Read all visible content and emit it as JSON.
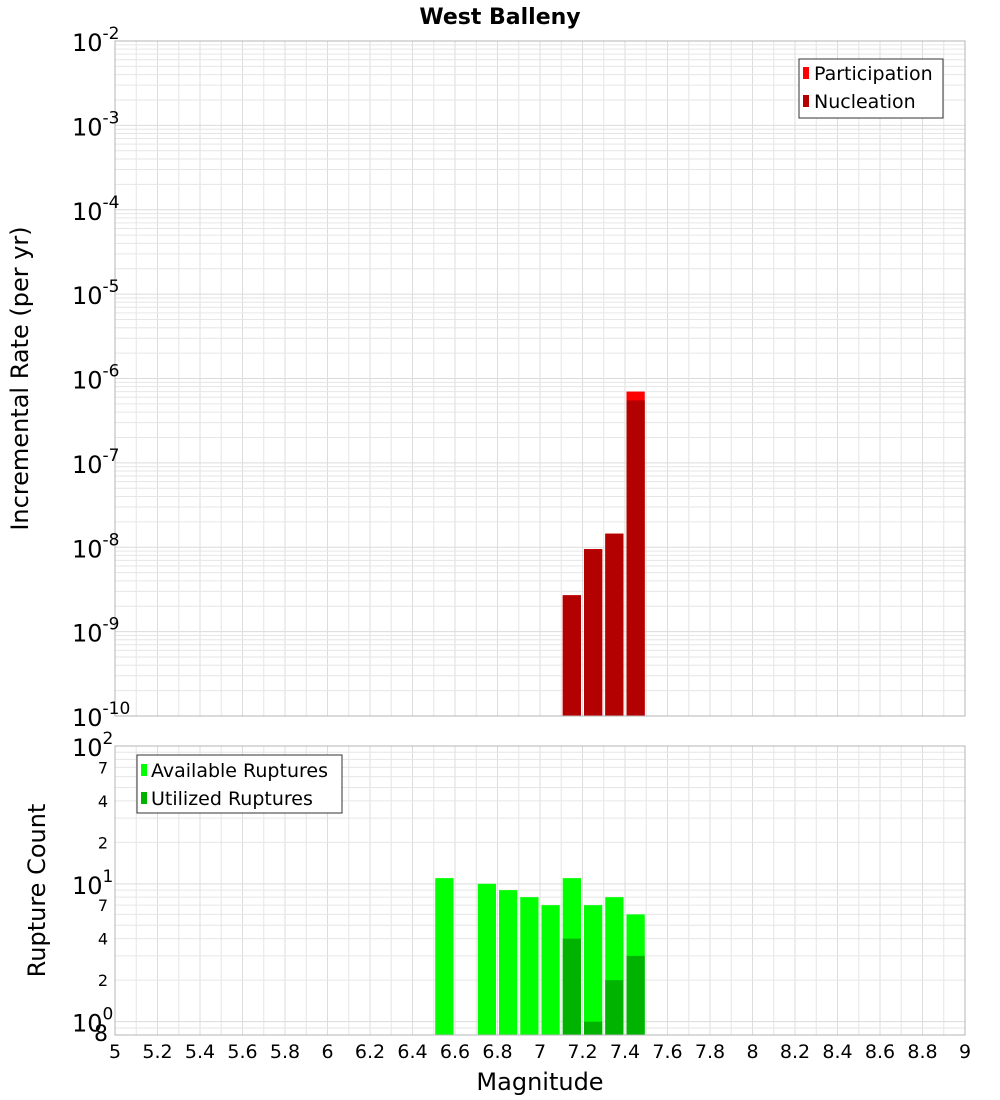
{
  "chart_data": [
    {
      "type": "bar",
      "title": "West Balleny",
      "xlabel": "",
      "ylabel": "Incremental Rate (per yr)",
      "y_scale": "log",
      "xlim": [
        5,
        9
      ],
      "ylim": [
        1e-10,
        0.01
      ],
      "y_major_ticks": [
        {
          "value": 1e-10,
          "base": "10",
          "exp": "-10"
        },
        {
          "value": 1e-09,
          "base": "10",
          "exp": "-9"
        },
        {
          "value": 1e-08,
          "base": "10",
          "exp": "-8"
        },
        {
          "value": 1e-07,
          "base": "10",
          "exp": "-7"
        },
        {
          "value": 1e-06,
          "base": "10",
          "exp": "-6"
        },
        {
          "value": 1e-05,
          "base": "10",
          "exp": "-5"
        },
        {
          "value": 0.0001,
          "base": "10",
          "exp": "-4"
        },
        {
          "value": 0.001,
          "base": "10",
          "exp": "-3"
        },
        {
          "value": 0.01,
          "base": "10",
          "exp": "-2"
        }
      ],
      "grid": true,
      "legend_position": "top-right",
      "bar_width": 0.1,
      "series": [
        {
          "name": "Participation",
          "color": "#ff0000",
          "x": [
            7.15,
            7.25,
            7.35,
            7.45
          ],
          "values": [
            2.7e-09,
            9.5e-09,
            1.45e-08,
            7e-07
          ]
        },
        {
          "name": "Nucleation",
          "color": "#b30000",
          "x": [
            7.15,
            7.25,
            7.35,
            7.45
          ],
          "values": [
            2.7e-09,
            9.5e-09,
            1.45e-08,
            5.5e-07
          ]
        }
      ]
    },
    {
      "type": "bar",
      "title": "",
      "xlabel": "Magnitude",
      "ylabel": "Rupture Count",
      "y_scale": "log",
      "xlim": [
        5,
        9
      ],
      "ylim": [
        0.8,
        100
      ],
      "x_ticks": [
        "5",
        "5.2",
        "5.4",
        "5.6",
        "5.8",
        "6",
        "6.2",
        "6.4",
        "6.6",
        "6.8",
        "7",
        "7.2",
        "7.4",
        "7.6",
        "7.8",
        "8",
        "8.2",
        "8.4",
        "8.6",
        "8.8",
        "9"
      ],
      "y_major_ticks": [
        {
          "value": 1,
          "base": "10",
          "exp": "0"
        },
        {
          "value": 10,
          "base": "10",
          "exp": "1"
        },
        {
          "value": 100,
          "base": "10",
          "exp": "2"
        }
      ],
      "y_minor_ticks": [
        {
          "value": 0.8,
          "label": "8"
        },
        {
          "value": 2,
          "label": "2"
        },
        {
          "value": 4,
          "label": "4"
        },
        {
          "value": 7,
          "label": "7"
        },
        {
          "value": 20,
          "label": "2"
        },
        {
          "value": 40,
          "label": "4"
        },
        {
          "value": 70,
          "label": "7"
        }
      ],
      "grid": true,
      "legend_position": "top-left",
      "bar_width": 0.1,
      "series": [
        {
          "name": "Available Ruptures",
          "color": "#00ff00",
          "x": [
            6.55,
            6.75,
            6.85,
            6.95,
            7.05,
            7.15,
            7.25,
            7.35,
            7.45
          ],
          "values": [
            11,
            10,
            9,
            8,
            7,
            11,
            7,
            8,
            6
          ]
        },
        {
          "name": "Utilized Ruptures",
          "color": "#00b300",
          "x": [
            7.15,
            7.25,
            7.35,
            7.45
          ],
          "values": [
            4,
            1,
            2,
            3
          ]
        }
      ]
    }
  ]
}
